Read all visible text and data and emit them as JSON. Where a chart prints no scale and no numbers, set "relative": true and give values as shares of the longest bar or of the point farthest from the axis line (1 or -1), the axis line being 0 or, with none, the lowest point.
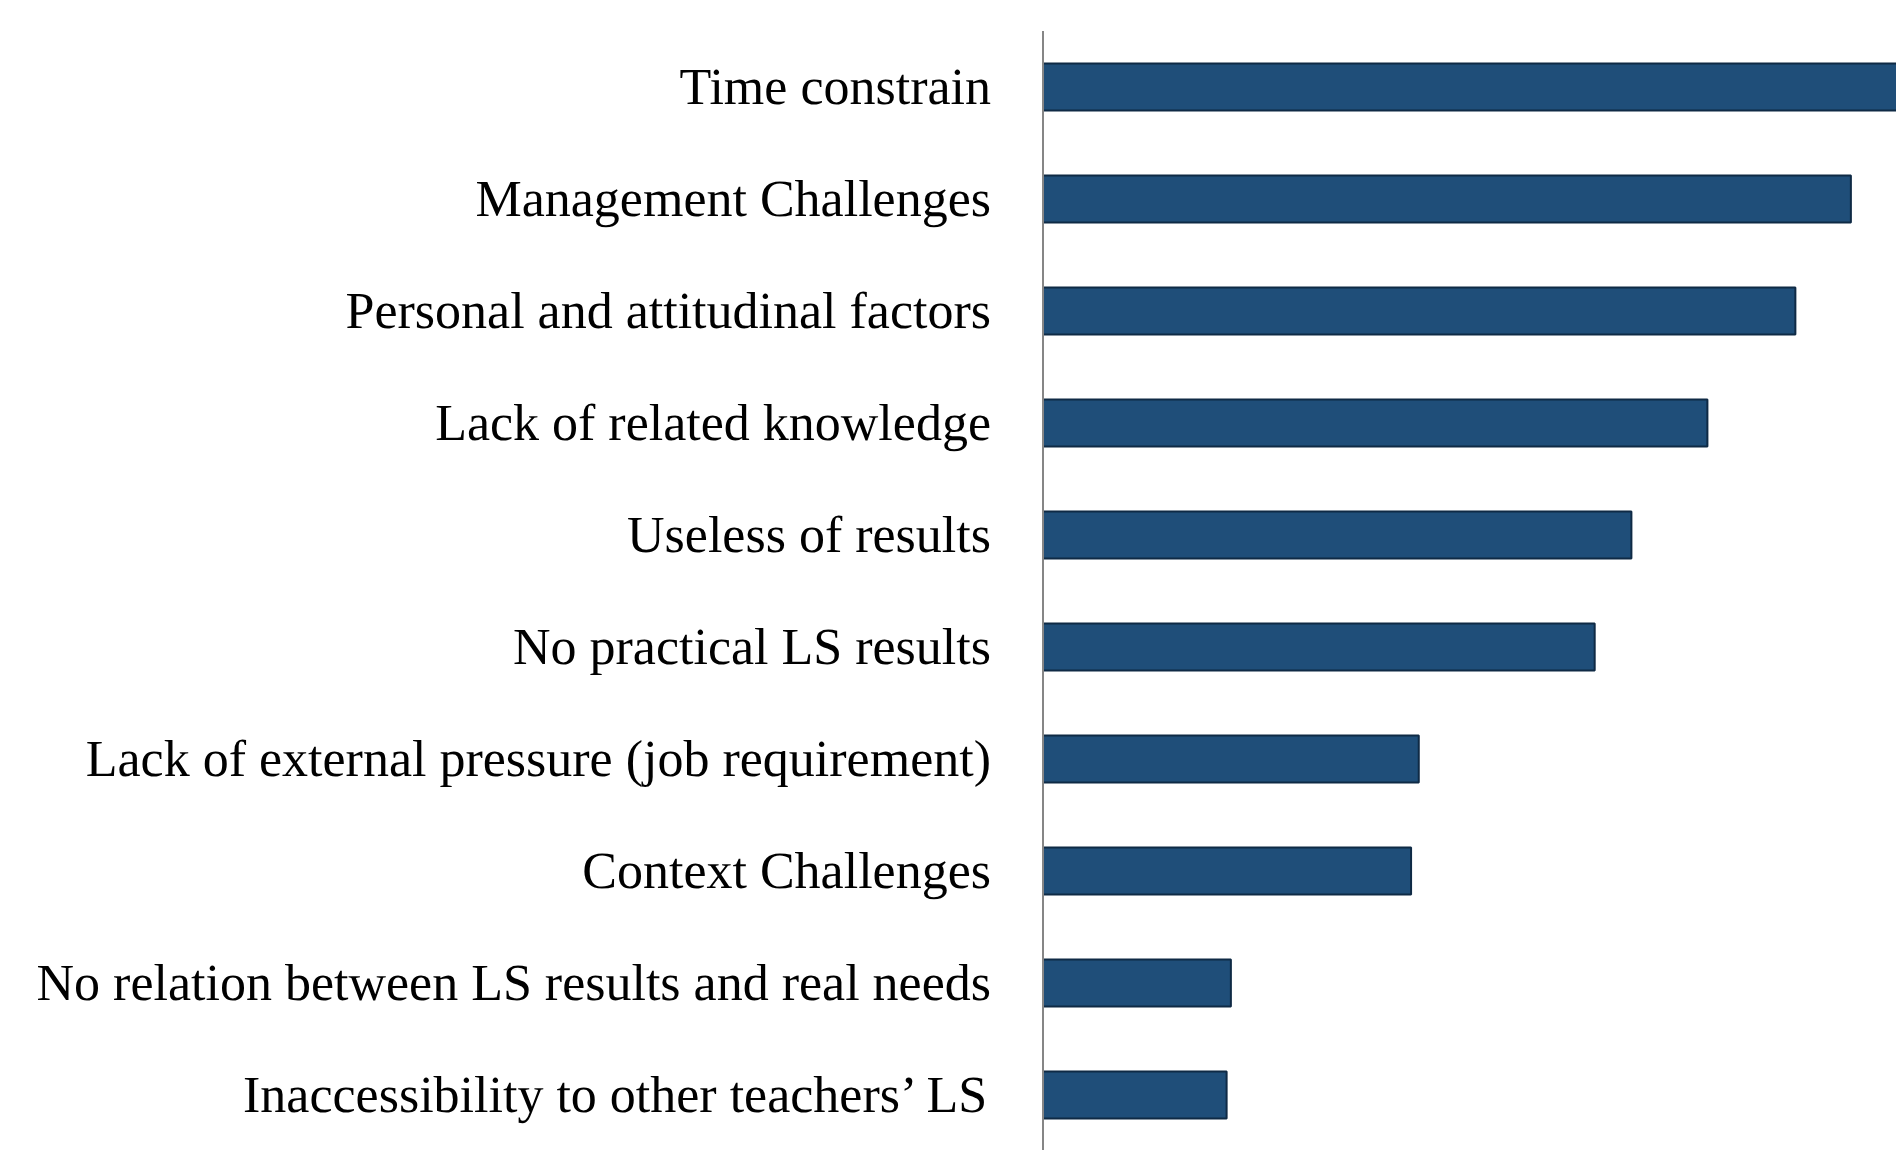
{
  "chart_data": {
    "type": "bar",
    "orientation": "horizontal",
    "relative": true,
    "categories": [
      "Time constrain",
      "Management Challenges",
      "Personal and attitudinal factors",
      "Lack of related knowledge",
      "Useless of results",
      "No practical LS results",
      "Lack of external pressure (job requirement)",
      "Context Challenges",
      "No relation between LS results and real needs",
      "Inaccessibility to other teachers’ LS"
    ],
    "values": [
      1,
      0.946,
      0.881,
      0.778,
      0.689,
      0.646,
      0.44,
      0.431,
      0.22,
      0.215
    ],
    "color": "#1f4e79"
  }
}
